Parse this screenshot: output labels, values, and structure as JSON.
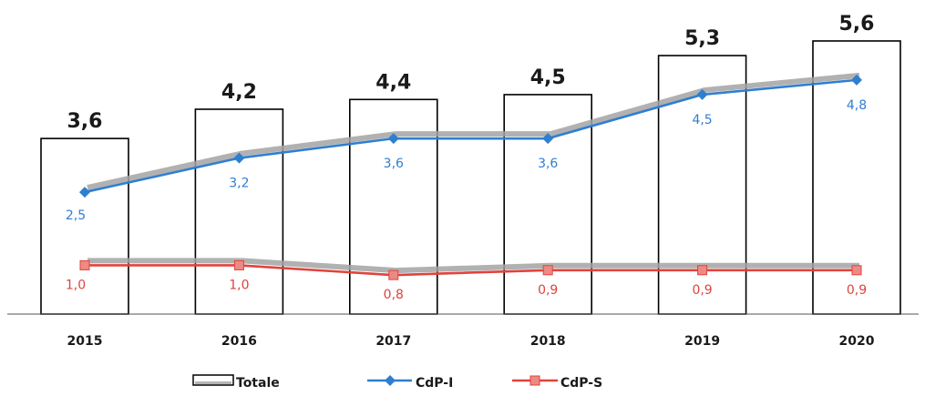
{
  "chart_data": {
    "type": "bar",
    "categories": [
      "2015",
      "2016",
      "2017",
      "2018",
      "2019",
      "2020"
    ],
    "series": [
      {
        "name": "Totale",
        "type": "bar",
        "values": [
          3.6,
          4.2,
          4.4,
          4.5,
          5.3,
          5.6
        ],
        "labels": [
          "3,6",
          "4,2",
          "4,4",
          "4,5",
          "5,3",
          "5,6"
        ],
        "color": "#ffffff",
        "border_color": "#000000"
      },
      {
        "name": "CdP-I",
        "type": "line",
        "marker": "diamond",
        "values": [
          2.5,
          3.2,
          3.6,
          3.6,
          4.5,
          4.8
        ],
        "labels": [
          "2,5",
          "3,2",
          "3,6",
          "3,6",
          "4,5",
          "4,8"
        ],
        "color": "#2f7fd1"
      },
      {
        "name": "CdP-S",
        "type": "line",
        "marker": "square",
        "values": [
          1.0,
          1.0,
          0.8,
          0.9,
          0.9,
          0.9
        ],
        "labels": [
          "1,0",
          "1,0",
          "0,8",
          "0,9",
          "0,9",
          "0,9"
        ],
        "color": "#e0433c"
      }
    ],
    "legend_position": "bottom",
    "gridlines": false,
    "y_axis_visible": false
  }
}
